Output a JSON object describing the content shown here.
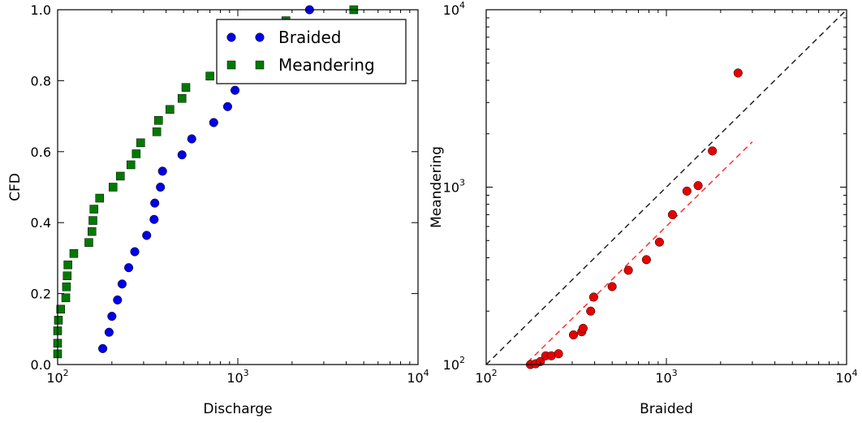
{
  "chart_data": [
    {
      "type": "scatter",
      "xlabel": "Discharge",
      "ylabel": "CFD",
      "xscale": "log",
      "xlim": [
        100,
        10000
      ],
      "ylim": [
        0,
        1.0
      ],
      "x_tick_labels": [
        {
          "value": 100,
          "base": "10",
          "exp": "2"
        },
        {
          "value": 1000,
          "base": "10",
          "exp": "3"
        },
        {
          "value": 10000,
          "base": "10",
          "exp": "4"
        }
      ],
      "y_tick_labels": [
        "0.0",
        "0.2",
        "0.4",
        "0.6",
        "0.8",
        "1.0"
      ],
      "y_tick_values": [
        0,
        0.2,
        0.4,
        0.6,
        0.8,
        1.0
      ],
      "legend_position": "top-right",
      "series": [
        {
          "name": "Braided",
          "marker": "circle",
          "color": "#0000e6",
          "points": [
            [
              178,
              0.045
            ],
            [
              193,
              0.091
            ],
            [
              200,
              0.136
            ],
            [
              215,
              0.182
            ],
            [
              228,
              0.227
            ],
            [
              248,
              0.273
            ],
            [
              268,
              0.318
            ],
            [
              312,
              0.364
            ],
            [
              343,
              0.409
            ],
            [
              346,
              0.455
            ],
            [
              372,
              0.5
            ],
            [
              382,
              0.545
            ],
            [
              490,
              0.591
            ],
            [
              555,
              0.636
            ],
            [
              735,
              0.682
            ],
            [
              878,
              0.727
            ],
            [
              965,
              0.773
            ],
            [
              1080,
              0.818
            ],
            [
              1300,
              0.864
            ],
            [
              1500,
              0.909
            ],
            [
              1800,
              0.955
            ],
            [
              2500,
              1.0
            ]
          ]
        },
        {
          "name": "Meandering",
          "marker": "square",
          "color": "#007a00",
          "points": [
            [
              100,
              0.03
            ],
            [
              100,
              0.06
            ],
            [
              100,
              0.095
            ],
            [
              101,
              0.125
            ],
            [
              104,
              0.156
            ],
            [
              111,
              0.188
            ],
            [
              112,
              0.219
            ],
            [
              113,
              0.25
            ],
            [
              114,
              0.281
            ],
            [
              123,
              0.313
            ],
            [
              149,
              0.344
            ],
            [
              155,
              0.375
            ],
            [
              157,
              0.406
            ],
            [
              159,
              0.438
            ],
            [
              171,
              0.469
            ],
            [
              203,
              0.5
            ],
            [
              223,
              0.531
            ],
            [
              255,
              0.563
            ],
            [
              273,
              0.594
            ],
            [
              289,
              0.625
            ],
            [
              355,
              0.656
            ],
            [
              363,
              0.688
            ],
            [
              420,
              0.719
            ],
            [
              490,
              0.75
            ],
            [
              515,
              0.781
            ],
            [
              700,
              0.813
            ],
            [
              880,
              0.844
            ],
            [
              950,
              0.875
            ],
            [
              1180,
              0.906
            ],
            [
              1400,
              0.938
            ],
            [
              1850,
              0.969
            ],
            [
              4400,
              1.0
            ]
          ]
        }
      ]
    },
    {
      "type": "scatter",
      "xlabel": "Braided",
      "ylabel": "Meandering",
      "xscale": "log",
      "yscale": "log",
      "xlim": [
        100,
        10000
      ],
      "ylim": [
        100,
        10000
      ],
      "x_tick_labels": [
        {
          "value": 100,
          "base": "10",
          "exp": "2"
        },
        {
          "value": 1000,
          "base": "10",
          "exp": "3"
        },
        {
          "value": 10000,
          "base": "10",
          "exp": "4"
        }
      ],
      "y_tick_labels": [
        {
          "value": 100,
          "base": "10",
          "exp": "2"
        },
        {
          "value": 1000,
          "base": "10",
          "exp": "3"
        },
        {
          "value": 10000,
          "base": "10",
          "exp": "4"
        }
      ],
      "series": [
        {
          "marker": "circle",
          "color": "#e60000",
          "points": [
            [
              176,
              100
            ],
            [
              188,
              101
            ],
            [
              200,
              104
            ],
            [
              214,
              112
            ],
            [
              230,
              112
            ],
            [
              252,
              115
            ],
            [
              305,
              147
            ],
            [
              339,
              153
            ],
            [
              345,
              160
            ],
            [
              380,
              200
            ],
            [
              395,
              240
            ],
            [
              500,
              275
            ],
            [
              615,
              340
            ],
            [
              775,
              390
            ],
            [
              915,
              490
            ],
            [
              1080,
              700
            ],
            [
              1300,
              950
            ],
            [
              1500,
              1020
            ],
            [
              1800,
              1600
            ],
            [
              2500,
              4400
            ]
          ]
        }
      ],
      "reference_lines": [
        {
          "style": "dashed",
          "color": "#222222",
          "from": [
            100,
            100
          ],
          "to": [
            10000,
            10000
          ]
        },
        {
          "style": "dashed",
          "color": "#ff3030",
          "from": [
            170,
            103
          ],
          "to": [
            3000,
            1800
          ]
        }
      ]
    }
  ]
}
